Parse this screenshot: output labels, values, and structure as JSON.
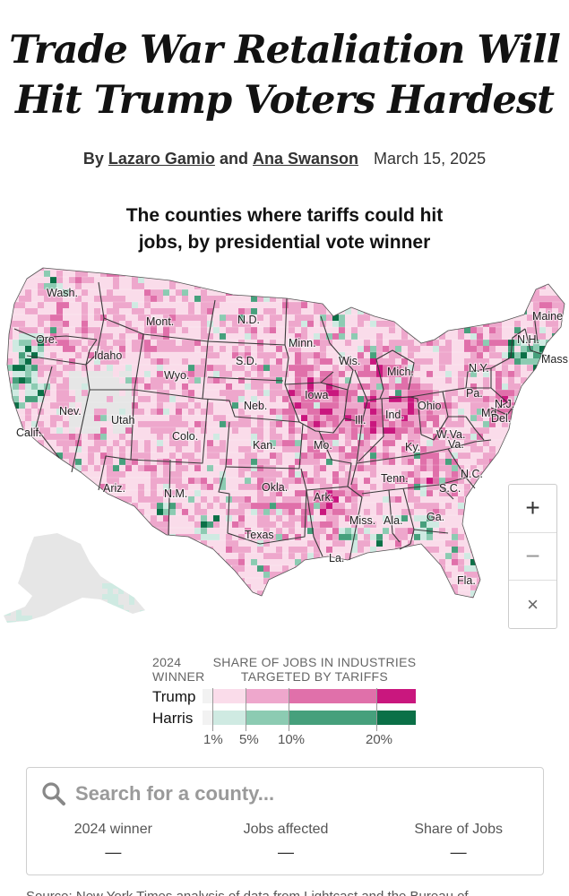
{
  "article": {
    "headline_line1": "Trade War Retaliation Will",
    "headline_line2": "Hit Trump Voters Hardest",
    "by": "By",
    "author1": "Lazaro Gamio",
    "and": "and",
    "author2": "Ana Swanson",
    "date": "March 15, 2025"
  },
  "map": {
    "title_line1": "The counties where tariffs could hit",
    "title_line2": "jobs, by presidential vote winner",
    "state_labels": [
      "Wash.",
      "Ore.",
      "Calif.",
      "Idaho",
      "Nev.",
      "Mont.",
      "Wyo.",
      "Utah",
      "Ariz.",
      "Colo.",
      "N.M.",
      "N.D.",
      "S.D.",
      "Neb.",
      "Kan.",
      "Okla.",
      "Texas",
      "Minn.",
      "Iowa",
      "Mo.",
      "Ark.",
      "La.",
      "Wis.",
      "Ill.",
      "Mich.",
      "Ind.",
      "Ohio",
      "Ky.",
      "Tenn.",
      "Miss.",
      "Ala.",
      "Ga.",
      "Fla.",
      "S.C.",
      "N.C.",
      "Va.",
      "W.Va.",
      "Pa.",
      "N.Y.",
      "Md.",
      "Del.",
      "N.J.",
      "Maine",
      "N.H.",
      "Mass."
    ],
    "colors": {
      "trump": [
        "#f2f2f2",
        "#fadcea",
        "#eea7cc",
        "#e070aa",
        "#c9177e"
      ],
      "harris": [
        "#f2f2f2",
        "#cfeae2",
        "#8ccbb2",
        "#46a07c",
        "#0b7047"
      ],
      "no_data": "#e6e6e6"
    }
  },
  "zoom": {
    "plus": "+",
    "minus": "−",
    "close": "×"
  },
  "legend": {
    "winner_label_1": "2024",
    "winner_label_2": "WINNER",
    "share_label_1": "SHARE OF JOBS IN INDUSTRIES",
    "share_label_2": "TARGETED BY TARIFFS",
    "rows": [
      "Trump",
      "Harris"
    ],
    "ticks": [
      "1%",
      "5%",
      "10%",
      "20%"
    ]
  },
  "search": {
    "placeholder": "Search for a county...",
    "columns": [
      {
        "header": "2024 winner",
        "value": "—"
      },
      {
        "header": "Jobs affected",
        "value": "—"
      },
      {
        "header": "Share of Jobs",
        "value": "—"
      }
    ]
  },
  "footer": {
    "text": "Source: New York Times analysis of data from Lightcast and the Bureau of"
  }
}
